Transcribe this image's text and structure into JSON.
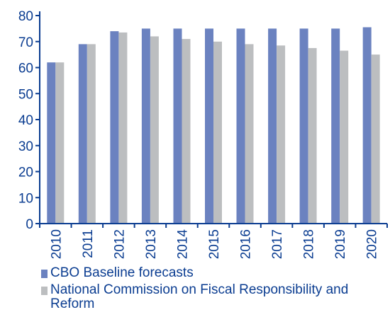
{
  "chart_data": {
    "type": "bar",
    "categories": [
      "2010",
      "2011",
      "2012",
      "2013",
      "2014",
      "2015",
      "2016",
      "2017",
      "2018",
      "2019",
      "2020"
    ],
    "series": [
      {
        "name": "CBO Baseline forecasts",
        "color": "#6b82c0",
        "values": [
          62,
          69,
          74,
          75,
          75,
          75,
          75,
          75,
          75,
          75,
          75.5
        ]
      },
      {
        "name": "National Commission on Fiscal Responsibility and Reform",
        "color": "#bcbec0",
        "values": [
          62,
          69,
          73.5,
          72,
          71,
          70,
          69,
          68.5,
          67.5,
          66.5,
          65
        ]
      }
    ],
    "yticks": [
      "0",
      "10",
      "20",
      "30",
      "40",
      "50",
      "60",
      "70",
      "80"
    ],
    "ylim": [
      0,
      80
    ],
    "axis_color": "#0b3d91",
    "grid": false,
    "legend_position": "bottom"
  }
}
